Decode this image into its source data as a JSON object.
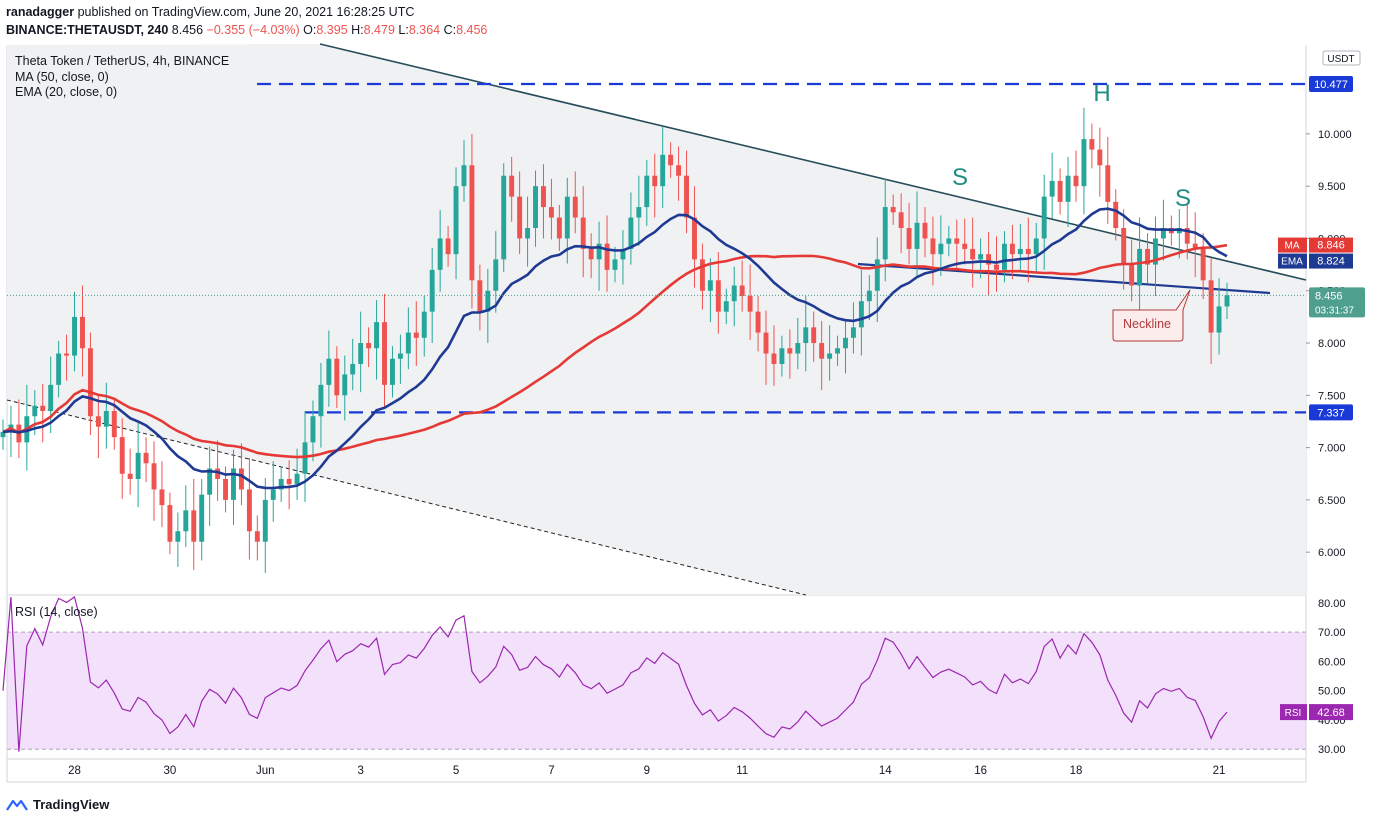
{
  "header": {
    "user": "ranadagger",
    "published": "published on TradingView.com, June 20, 2021 16:28:25 UTC",
    "symbol": "BINANCE:THETAUSDT, 240",
    "last": "8.456",
    "change": "−0.355 (−4.03%)",
    "open_label": "O:",
    "open": "8.395",
    "high_label": "H:",
    "high": "8.479",
    "low_label": "L:",
    "low": "8.364",
    "close_label": "C:",
    "close": "8.456"
  },
  "legend": {
    "title": "Theta Token / TetherUS, 4h, BINANCE",
    "ma": "MA (50, close, 0)",
    "ema": "EMA (20, close, 0)"
  },
  "rsi_title": "RSI (14, close)",
  "footer": {
    "brand": "TradingView"
  },
  "annotations": {
    "neckline": "Neckline",
    "shoulder_left": "S",
    "head": "H",
    "shoulder_right": "S"
  },
  "colors": {
    "up": "#26a69a",
    "down": "#ef5350",
    "ema": "#1f3a93",
    "ma": "#e53935",
    "level": "#1a237e",
    "trend": "#264d5a",
    "rsi": "#9c27b0",
    "rsi_band": "#f3e1fb",
    "price_bg": "#f0f1f3",
    "price_badge": "#4f9f8f",
    "teal_text": "#1e8d83"
  },
  "chart_data": {
    "type": "candlestick",
    "title": "Theta Token / TetherUS, 4h, BINANCE",
    "currency": "USDT",
    "ylim": [
      5.6,
      10.85
    ],
    "y_ticks": [
      6.0,
      6.5,
      7.0,
      7.5,
      8.0,
      8.5,
      9.0,
      9.5,
      10.0
    ],
    "y_tick_labels": [
      "6.000",
      "6.500",
      "7.000",
      "7.500",
      "8.000",
      "8.500",
      "9.000",
      "9.500",
      "10.000"
    ],
    "x_ticks": [
      {
        "label": "28",
        "bar": 9
      },
      {
        "label": "30",
        "bar": 21
      },
      {
        "label": "Jun",
        "bar": 33
      },
      {
        "label": "3",
        "bar": 45
      },
      {
        "label": "5",
        "bar": 57
      },
      {
        "label": "7",
        "bar": 69
      },
      {
        "label": "9",
        "bar": 81
      },
      {
        "label": "11",
        "bar": 93
      },
      {
        "label": "14",
        "bar": 111
      },
      {
        "label": "16",
        "bar": 123
      },
      {
        "label": "18",
        "bar": 135
      },
      {
        "label": "21",
        "bar": 153
      }
    ],
    "closes": [
      7.15,
      7.22,
      7.05,
      7.3,
      7.4,
      7.35,
      7.6,
      7.9,
      7.88,
      8.25,
      7.95,
      7.3,
      7.2,
      7.35,
      7.1,
      6.75,
      6.7,
      6.95,
      6.85,
      6.6,
      6.45,
      6.1,
      6.2,
      6.4,
      6.1,
      6.55,
      6.8,
      6.7,
      6.5,
      6.8,
      6.6,
      6.2,
      6.1,
      6.5,
      6.6,
      6.7,
      6.65,
      6.75,
      7.05,
      7.3,
      7.6,
      7.85,
      7.5,
      7.7,
      7.8,
      8.0,
      7.95,
      8.2,
      7.6,
      7.85,
      7.9,
      8.1,
      8.05,
      8.3,
      8.7,
      9.0,
      8.85,
      9.5,
      9.7,
      8.6,
      8.3,
      8.5,
      8.8,
      9.6,
      9.4,
      9.0,
      9.1,
      9.5,
      9.3,
      9.2,
      9.0,
      9.4,
      9.2,
      8.9,
      8.8,
      8.95,
      8.7,
      8.8,
      8.9,
      9.2,
      9.3,
      9.6,
      9.5,
      9.8,
      9.7,
      9.6,
      9.2,
      8.8,
      8.5,
      8.6,
      8.3,
      8.4,
      8.55,
      8.45,
      8.3,
      8.1,
      7.9,
      7.8,
      7.95,
      7.9,
      8.0,
      8.15,
      8.0,
      7.85,
      7.9,
      7.95,
      8.05,
      8.15,
      8.4,
      8.5,
      8.8,
      9.3,
      9.25,
      9.1,
      8.9,
      9.15,
      9.0,
      8.85,
      8.95,
      9.0,
      8.95,
      8.9,
      8.8,
      8.85,
      8.75,
      8.7,
      8.95,
      8.85,
      8.9,
      8.85,
      9.0,
      9.4,
      9.55,
      9.35,
      9.6,
      9.5,
      9.95,
      9.85,
      9.7,
      9.35,
      9.1,
      8.75,
      8.55,
      8.9,
      8.75,
      9.0,
      9.1,
      9.05,
      9.1,
      8.95,
      8.9,
      8.6,
      8.1,
      8.35,
      8.456
    ],
    "last_price": 8.456,
    "countdown": "03:31:37",
    "ma50_last": 8.846,
    "ema20_last": 8.824,
    "levels": [
      {
        "value": 10.477,
        "label": "10.477"
      },
      {
        "value": 7.337,
        "label": "7.337"
      }
    ],
    "rsi": {
      "title": "RSI (14, close)",
      "ylim": [
        27,
        82
      ],
      "ticks": [
        30,
        40,
        50,
        60,
        70,
        80
      ],
      "tick_labels": [
        "30.00",
        "40.00",
        "50.00",
        "60.00",
        "70.00",
        "80.00"
      ],
      "band": [
        30,
        70
      ],
      "last": 42.68,
      "last_label": "42.68"
    },
    "badges": {
      "currency": "USDT",
      "ma": "MA",
      "ma_value": "8.846",
      "ema": "EMA",
      "ema_value": "8.824",
      "price": "8.456",
      "rsi": "RSI",
      "rsi_value": "42.68"
    }
  }
}
